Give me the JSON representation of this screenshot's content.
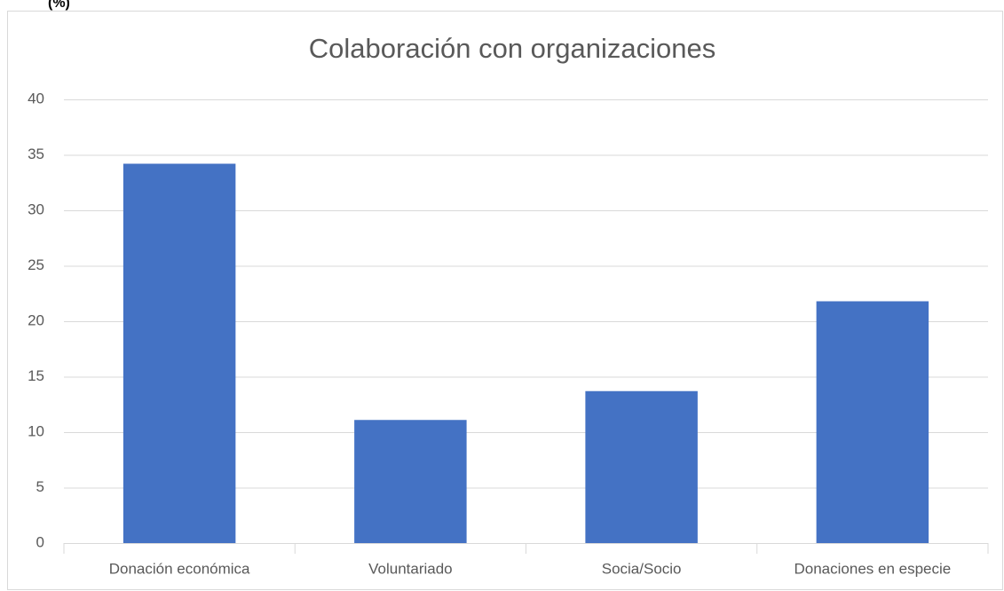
{
  "unit_label": "(%)",
  "chart_data": {
    "type": "bar",
    "title": "Colaboración con organizaciones",
    "categories": [
      "Donación económica",
      "Voluntariado",
      "Socia/Socio",
      "Donaciones en especie"
    ],
    "values": [
      34.2,
      11.1,
      13.7,
      21.8
    ],
    "color": "#4472c4",
    "ylim": [
      0,
      40
    ],
    "yticks": [
      0,
      5,
      10,
      15,
      20,
      25,
      30,
      35,
      40
    ],
    "grid": true
  }
}
